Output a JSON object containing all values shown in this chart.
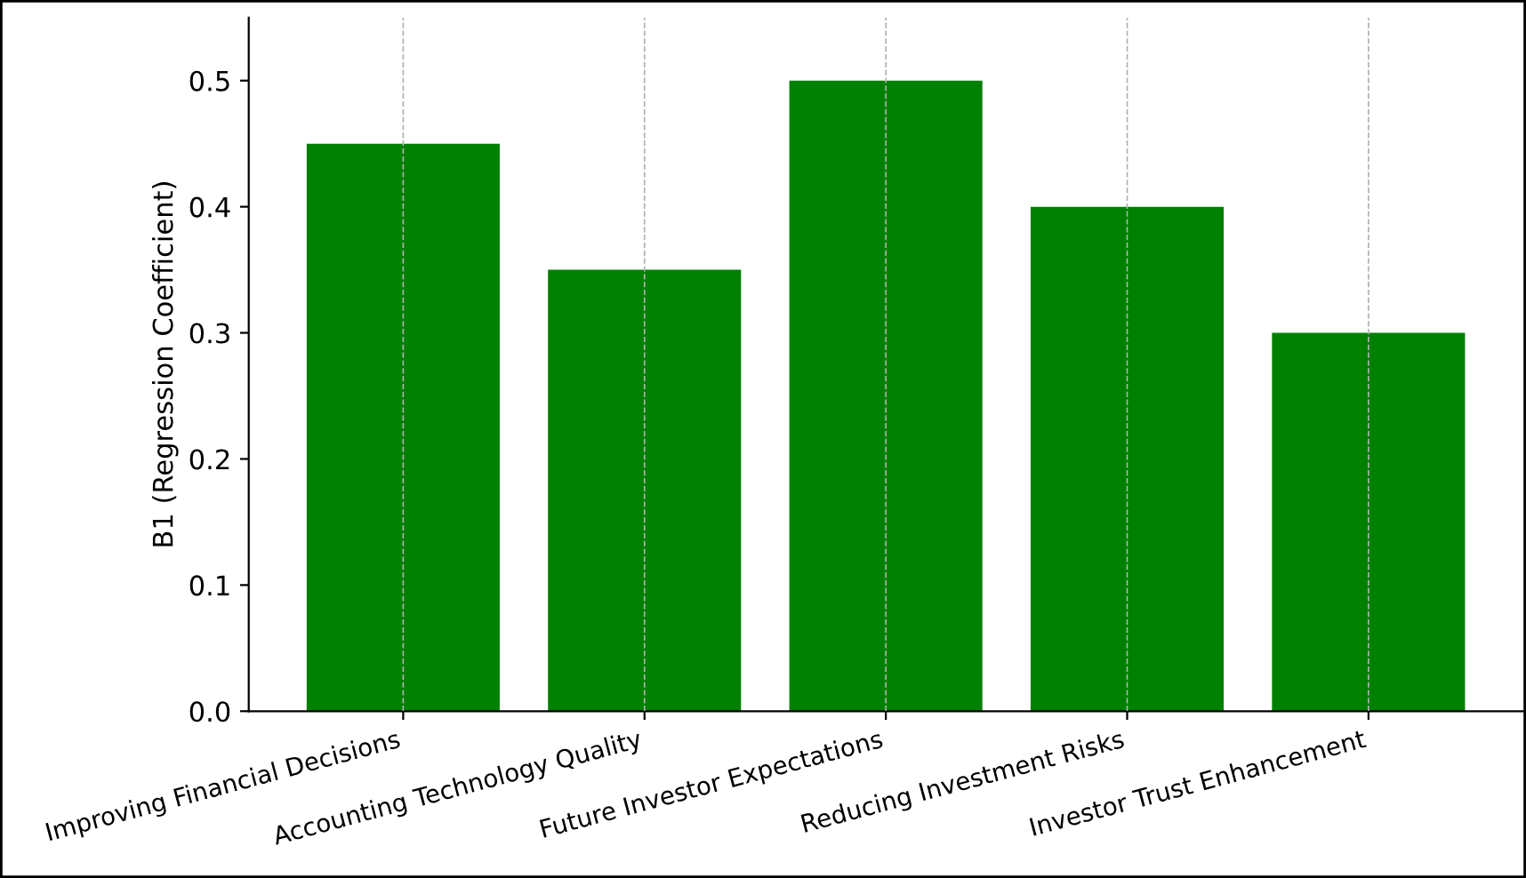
{
  "chart_data": {
    "type": "bar",
    "ylabel": "B1 (Regression Coefficient)",
    "categories": [
      "Improving Financial Decisions",
      "Accounting Technology Quality",
      "Future Investor Expectations",
      "Reducing Investment Risks",
      "Investor Trust Enhancement"
    ],
    "values": [
      0.45,
      0.35,
      0.5,
      0.4,
      0.3
    ],
    "color": "#008000",
    "ylim": [
      0,
      0.55
    ],
    "yticks": [
      {
        "value": 0,
        "label": "0.0"
      },
      0.1,
      0.2,
      0.3,
      0.4,
      0.5
    ],
    "grid": "x",
    "legend": false
  }
}
